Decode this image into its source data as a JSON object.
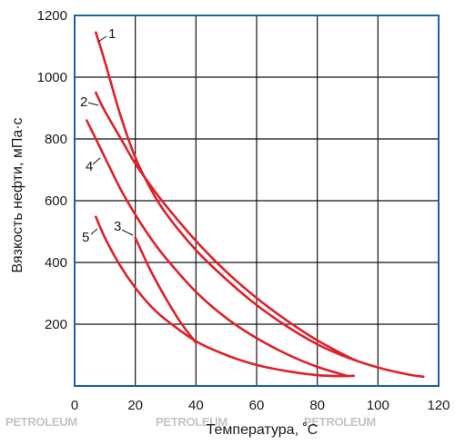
{
  "chart_data": {
    "type": "line",
    "xlabel": "Температура, ˚С",
    "ylabel": "Вязкость нефти, мПа·с",
    "xlim": [
      0,
      120
    ],
    "ylim": [
      0,
      1200
    ],
    "x_ticks": [
      "0",
      "20",
      "40",
      "60",
      "80",
      "100",
      "120"
    ],
    "y_ticks": [
      "200",
      "400",
      "600",
      "800",
      "1000",
      "1200"
    ],
    "grid": true,
    "line_color": "#e0202a",
    "plot_border_color": "#1b5fa8",
    "series": [
      {
        "name": "1",
        "x": [
          7,
          10,
          15,
          20,
          25,
          30,
          40,
          50,
          60,
          70,
          80,
          90,
          100,
          110,
          115
        ],
        "y": [
          1145,
          1050,
          880,
          740,
          640,
          560,
          440,
          345,
          262,
          193,
          135,
          92,
          60,
          37,
          30
        ]
      },
      {
        "name": "2",
        "x": [
          7,
          10,
          15,
          20,
          25,
          30,
          40,
          50,
          60,
          70,
          80,
          90,
          93
        ],
        "y": [
          950,
          890,
          805,
          720,
          650,
          585,
          470,
          370,
          285,
          212,
          148,
          95,
          82
        ]
      },
      {
        "name": "3",
        "x": [
          20,
          25,
          30,
          35,
          40
        ],
        "y": [
          480,
          375,
          285,
          205,
          140
        ]
      },
      {
        "name": "4",
        "x": [
          4,
          10,
          15,
          20,
          25,
          30,
          40,
          50,
          60,
          70,
          80,
          90
        ],
        "y": [
          860,
          740,
          640,
          555,
          480,
          415,
          305,
          220,
          155,
          103,
          62,
          32
        ]
      },
      {
        "name": "5",
        "x": [
          7,
          10,
          15,
          20,
          25,
          30,
          40,
          50,
          60,
          70,
          80,
          87,
          92
        ],
        "y": [
          548,
          480,
          390,
          318,
          260,
          215,
          145,
          100,
          68,
          48,
          35,
          32,
          33
        ]
      }
    ],
    "watermarks": [
      "PETROLEUM",
      "PETROLEUM",
      "PETROLEUM"
    ]
  }
}
